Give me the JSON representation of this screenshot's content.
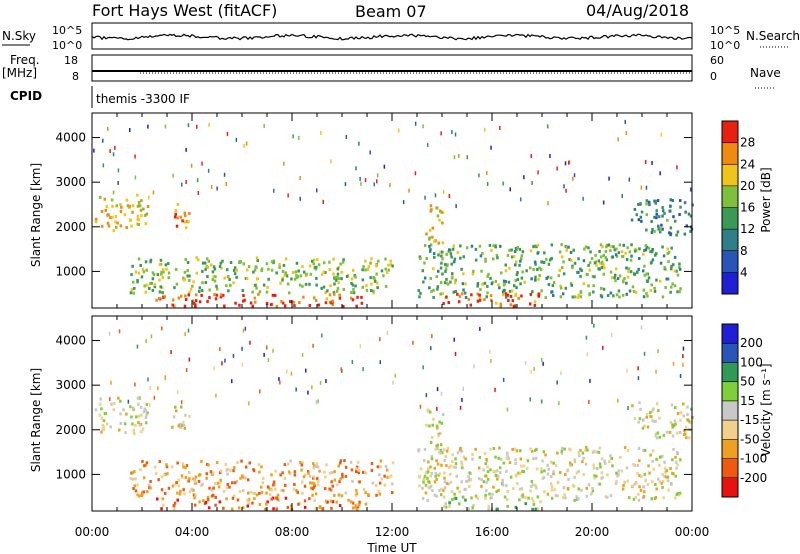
{
  "header": {
    "station": "Fort Hays West (fitACF)",
    "beam": "Beam 07",
    "date": "04/Aug/2018"
  },
  "status_panels": {
    "nsky_label": "N.Sky",
    "nsky_ticks": [
      "10^5",
      "10^0"
    ],
    "nsearch_label": "N.Search",
    "nsearch_ticks": [
      "10^5",
      "10^0"
    ],
    "freq_label": "Freq.",
    "freq_unit": "[MHz]",
    "freq_ticks": [
      "18",
      "8"
    ],
    "nave_label": "Nave",
    "nave_ticks": [
      "60",
      "0"
    ],
    "cpid_label": "CPID",
    "cpid_value": "themis -3300 IF"
  },
  "chart_data": [
    {
      "type": "heatmap",
      "title": "",
      "ylabel": "Slant Range [km]",
      "xlabel": "",
      "xlim": [
        0,
        24
      ],
      "ylim": [
        180,
        4550
      ],
      "y_ticks": [
        "1000",
        "2000",
        "3000",
        "4000"
      ],
      "x_ticks": [
        "00:00",
        "04:00",
        "08:00",
        "12:00",
        "16:00",
        "20:00",
        "00:00"
      ],
      "colorbar": {
        "label": "Power [dB]",
        "range": [
          0,
          32
        ],
        "tick_labels": [
          "4",
          "8",
          "12",
          "16",
          "20",
          "24",
          "28"
        ],
        "colors": [
          "#1f1fd6",
          "#2a55b8",
          "#2e7f8a",
          "#3a9a55",
          "#7fc03a",
          "#f0c419",
          "#f08a10",
          "#e82010"
        ]
      },
      "features": [
        {
          "t0": 0.1,
          "t1": 2.2,
          "r0": 1900,
          "r1": 2700,
          "level": 0.7
        },
        {
          "t0": 3.1,
          "t1": 3.9,
          "r0": 1950,
          "r1": 2500,
          "level": 0.8
        },
        {
          "t0": 13.3,
          "t1": 14.0,
          "r0": 1600,
          "r1": 2500,
          "level": 0.7
        },
        {
          "t0": 1.5,
          "t1": 12.0,
          "r0": 500,
          "r1": 1300,
          "level": 0.55
        },
        {
          "t0": 2.5,
          "t1": 11.0,
          "r0": 200,
          "r1": 480,
          "level": 0.92
        },
        {
          "t0": 13.0,
          "t1": 23.5,
          "r0": 400,
          "r1": 1600,
          "level": 0.5
        },
        {
          "t0": 14.0,
          "t1": 18.0,
          "r0": 200,
          "r1": 500,
          "level": 0.9
        },
        {
          "t0": 21.5,
          "t1": 24.0,
          "r0": 1800,
          "r1": 2600,
          "level": 0.35
        }
      ]
    },
    {
      "type": "heatmap",
      "title": "",
      "ylabel": "Slant Range [km]",
      "xlabel": "Time UT",
      "xlim": [
        0,
        24
      ],
      "ylim": [
        180,
        4550
      ],
      "y_ticks": [
        "1000",
        "2000",
        "3000",
        "4000"
      ],
      "x_ticks": [
        "00:00",
        "04:00",
        "08:00",
        "12:00",
        "16:00",
        "20:00",
        "00:00"
      ],
      "colorbar": {
        "label": "Velocity [m s⁻¹]",
        "range": [
          -250,
          250
        ],
        "tick_labels": [
          "-200",
          "-100",
          "-50",
          "-15",
          "15",
          "50",
          "100",
          "200"
        ],
        "colors": [
          "#e81010",
          "#f05a10",
          "#f0a020",
          "#f0d08a",
          "#c8c8c8",
          "#7fcf3a",
          "#2e9a55",
          "#2a55b8",
          "#1f1fd6"
        ]
      },
      "features": [
        {
          "t0": 0.1,
          "t1": 2.2,
          "r0": 1900,
          "r1": 2700,
          "level": 0.45
        },
        {
          "t0": 3.1,
          "t1": 3.9,
          "r0": 1950,
          "r1": 2500,
          "level": 0.45
        },
        {
          "t0": 13.3,
          "t1": 14.0,
          "r0": 1600,
          "r1": 2500,
          "level": 0.45
        },
        {
          "t0": 1.5,
          "t1": 12.0,
          "r0": 500,
          "r1": 1300,
          "level": 0.3
        },
        {
          "t0": 2.5,
          "t1": 11.0,
          "r0": 200,
          "r1": 480,
          "level": 0.2
        },
        {
          "t0": 13.0,
          "t1": 23.5,
          "r0": 400,
          "r1": 1600,
          "level": 0.45
        },
        {
          "t0": 14.0,
          "t1": 18.0,
          "r0": 200,
          "r1": 500,
          "level": 0.55
        },
        {
          "t0": 21.5,
          "t1": 24.0,
          "r0": 1800,
          "r1": 2600,
          "level": 0.45
        }
      ]
    }
  ]
}
